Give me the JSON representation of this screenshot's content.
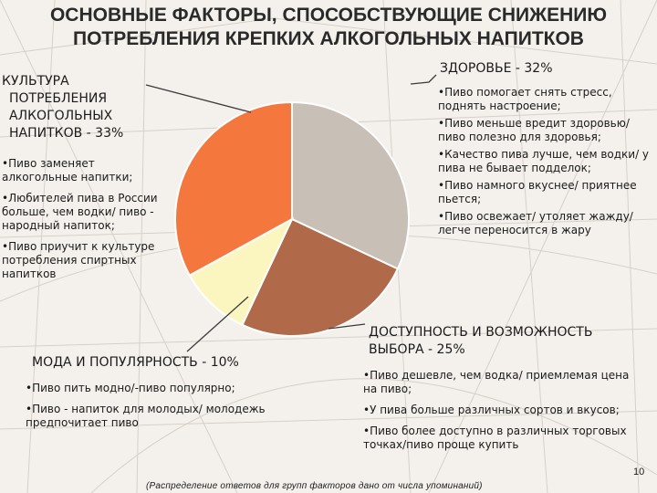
{
  "title": {
    "line1": "ОСНОВНЫЕ ФАКТОРЫ, СПОСОБСТВУЮЩИЕ СНИЖЕНИЮ",
    "line2": "ПОТРЕБЛЕНИЯ  КРЕПКИХ АЛКОГОЛЬНЫХ НАПИТКОВ"
  },
  "chart_data": {
    "type": "pie",
    "title": "",
    "slices": [
      {
        "label": "ЗДОРОВЬЕ - 32%",
        "value": 32,
        "color": "#c8bfb6"
      },
      {
        "label": "ДОСТУПНОСТЬ И ВОЗМОЖНОСТЬ ВЫБОРА - 25%",
        "value": 25,
        "color": "#b06a4a"
      },
      {
        "label": "МОДА И ПОПУЛЯРНОСТЬ - 10%",
        "value": 10,
        "color": "#fbf6c0"
      },
      {
        "label": "КУЛЬТУРА ПОТРЕБЛЕНИЯ АЛКОГОЛЬНЫХ НАПИТКОВ - 33%",
        "value": 33,
        "color": "#f4773e"
      }
    ]
  },
  "groups": {
    "health": {
      "heading": "ЗДОРОВЬЕ - 32%",
      "items": [
        "Пиво помогает снять стресс, поднять настроение;",
        "Пиво меньше вредит здоровью/пиво полезно для здоровья;",
        "Качество пива лучше, чем водки/ у пива не бывает подделок;",
        "Пиво намного вкуснее/ приятнее пьется;",
        "Пиво освежает/ утоляет жажду/ легче переносится в жару"
      ]
    },
    "culture": {
      "heading_lines": [
        "КУЛЬТУРА",
        "ПОТРЕБЛЕНИЯ",
        "АЛКОГОЛЬНЫХ",
        "НАПИТКОВ - 33%"
      ],
      "items": [
        "Пиво заменяет алкогольные напитки;",
        "Любителей пива в России больше, чем водки/ пиво - народный напиток;",
        "Пиво приучит к культуре потребления спиртных напитков"
      ]
    },
    "fashion": {
      "heading": "МОДА И ПОПУЛЯРНОСТЬ - 10%",
      "items": [
        "Пиво пить модно/-пиво популярно;",
        "Пиво - напиток для молодых/ молодежь предпочитает пиво"
      ]
    },
    "access": {
      "heading_lines": [
        "ДОСТУПНОСТЬ И ВОЗМОЖНОСТЬ",
        "ВЫБОРА - 25%"
      ],
      "items": [
        "Пиво дешевле, чем водка/ приемлемая цена на пиво;",
        "У пива больше различных сортов и вкусов;",
        "Пиво более доступно в различных торговых точках/пиво проще купить"
      ]
    }
  },
  "footnote": "(Распределение ответов для групп факторов дано от числа упоминаний)",
  "page_number": "10"
}
